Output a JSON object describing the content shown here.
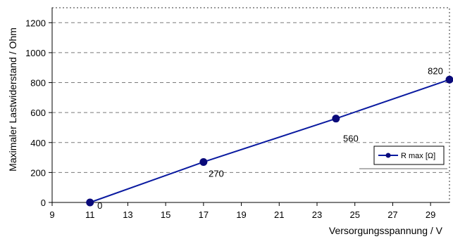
{
  "chart_data": {
    "type": "line",
    "title": "",
    "xlabel": "Versorgungsspannung / V",
    "ylabel": "Maximaler Lastwiderstand / Ohm",
    "xlim": [
      9,
      30
    ],
    "ylim": [
      0,
      1300
    ],
    "x_ticks": [
      9,
      11,
      13,
      15,
      17,
      19,
      21,
      23,
      25,
      27,
      29
    ],
    "y_ticks": [
      0,
      200,
      400,
      600,
      800,
      1000,
      1200
    ],
    "grid": "horizontal dashed",
    "legend_position": "right",
    "series": [
      {
        "name": "R max [Ω]",
        "color": "#0a1aa0",
        "marker_color": "#0a0a7a",
        "x": [
          11,
          17,
          24,
          30
        ],
        "y": [
          0,
          270,
          560,
          820
        ],
        "data_labels": [
          "0",
          "270",
          "560",
          "820"
        ]
      }
    ]
  }
}
